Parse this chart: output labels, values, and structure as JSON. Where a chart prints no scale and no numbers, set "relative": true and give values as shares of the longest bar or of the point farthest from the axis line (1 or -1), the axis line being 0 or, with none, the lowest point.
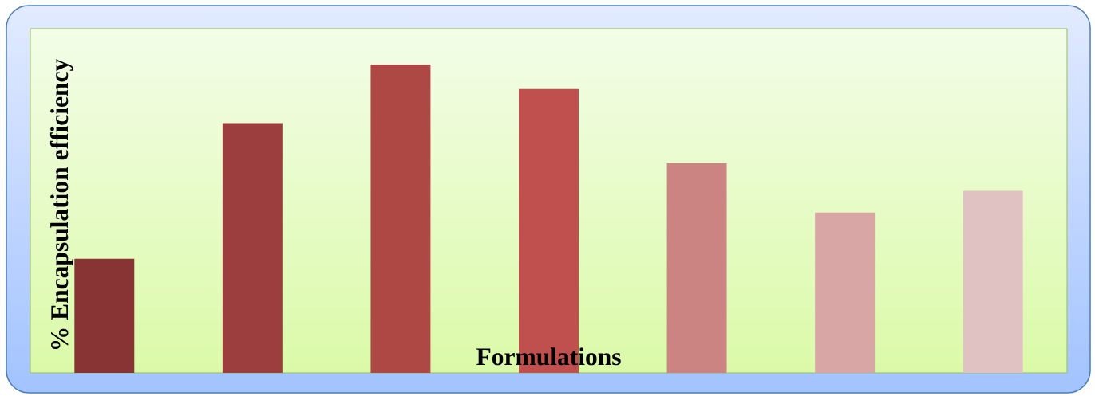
{
  "chart_data": {
    "type": "bar",
    "xlabel": "Formulations",
    "ylabel": "% Encapsulation efficiency",
    "categories": [
      null,
      null,
      null,
      null,
      null,
      null,
      null
    ],
    "values": [
      0.37,
      0.81,
      1,
      0.92,
      0.68,
      0.52,
      0.59
    ],
    "colors": [
      "#893434",
      "#9C3E3D",
      "#AE4845",
      "#C0504D",
      "#CC8482",
      "#D9A6A6",
      "#E1C2C3"
    ],
    "relative": true
  }
}
